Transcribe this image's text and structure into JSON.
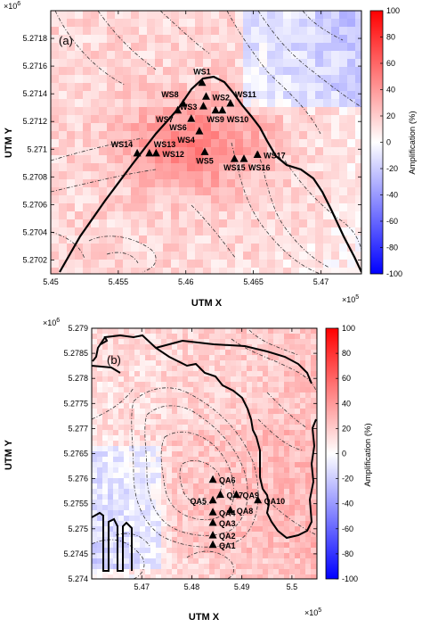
{
  "figure": {
    "panels": [
      {
        "panel_label": "(a)",
        "xlabel": "UTM X",
        "ylabel": "UTM Y",
        "x_exponent": "×10",
        "x_exponent_power": "5",
        "y_exponent": "×10",
        "y_exponent_power": "6",
        "colorbar": {
          "label": "Amplification (%)",
          "ticks": [
            "100",
            "80",
            "60",
            "40",
            "20",
            "0",
            "-20",
            "-40",
            "-60",
            "-80",
            "-100"
          ]
        }
      },
      {
        "panel_label": "(b)",
        "xlabel": "UTM X",
        "ylabel": "UTM Y",
        "x_exponent": "×10",
        "x_exponent_power": "5",
        "y_exponent": "×10",
        "y_exponent_power": "6",
        "colorbar": {
          "label": "Amplification (%)",
          "ticks": [
            "100",
            "80",
            "60",
            "40",
            "20",
            "0",
            "-20",
            "-40",
            "-60",
            "-80",
            "-100"
          ]
        }
      }
    ]
  },
  "colors": {
    "positive": "#ff0000",
    "neutral": "#ffffff",
    "negative": "#0000ff",
    "marker": "#000000"
  },
  "chart_data": [
    {
      "type": "heatmap",
      "title": "",
      "xlabel": "UTM X",
      "ylabel": "UTM Y",
      "xlim": [
        5.45,
        5.473
      ],
      "ylim": [
        5.2701,
        5.272
      ],
      "x_ticks": [
        5.45,
        5.455,
        5.46,
        5.465,
        5.47
      ],
      "x_tick_labels": [
        "5.45",
        "5.455",
        "5.46",
        "5.465",
        "5.47"
      ],
      "y_ticks": [
        5.2702,
        5.2704,
        5.2706,
        5.2708,
        5.271,
        5.2712,
        5.2714,
        5.2716,
        5.2718
      ],
      "y_tick_labels": [
        "5.2702",
        "5.2704",
        "5.2706",
        "5.2708",
        "5.271",
        "5.2712",
        "5.2714",
        "5.2716",
        "5.2718"
      ],
      "color_range": [
        -100,
        100
      ],
      "colorbar_label": "Amplification (%)",
      "stations": [
        {
          "name": "WS1",
          "x": 5.4612,
          "y": 5.27148,
          "label_pos": "above"
        },
        {
          "name": "WS2",
          "x": 5.4615,
          "y": 5.27138,
          "label_pos": "right"
        },
        {
          "name": "WS3",
          "x": 5.4613,
          "y": 5.27131,
          "label_pos": "left"
        },
        {
          "name": "WS4",
          "x": 5.461,
          "y": 5.27113,
          "label_pos": "below-left"
        },
        {
          "name": "WS5",
          "x": 5.4614,
          "y": 5.27098,
          "label_pos": "below"
        },
        {
          "name": "WS6",
          "x": 5.4604,
          "y": 5.27122,
          "label_pos": "below-left"
        },
        {
          "name": "WS7",
          "x": 5.4594,
          "y": 5.27128,
          "label_pos": "below-left"
        },
        {
          "name": "WS8",
          "x": 5.4598,
          "y": 5.27133,
          "label_pos": "above-left"
        },
        {
          "name": "WS9",
          "x": 5.4622,
          "y": 5.27128,
          "label_pos": "below"
        },
        {
          "name": "WS10",
          "x": 5.4627,
          "y": 5.27128,
          "label_pos": "below-right"
        },
        {
          "name": "WS11",
          "x": 5.4633,
          "y": 5.27133,
          "label_pos": "above-right"
        },
        {
          "name": "WS12",
          "x": 5.4578,
          "y": 5.27097,
          "label_pos": "right"
        },
        {
          "name": "WS13",
          "x": 5.4573,
          "y": 5.27097,
          "label_pos": "above-right"
        },
        {
          "name": "WS14",
          "x": 5.4564,
          "y": 5.27097,
          "label_pos": "above-left"
        },
        {
          "name": "WS15",
          "x": 5.4636,
          "y": 5.27093,
          "label_pos": "below"
        },
        {
          "name": "WS16",
          "x": 5.4643,
          "y": 5.27093,
          "label_pos": "below-right"
        },
        {
          "name": "WS17",
          "x": 5.4653,
          "y": 5.27096,
          "label_pos": "right"
        }
      ]
    },
    {
      "type": "heatmap",
      "title": "",
      "xlabel": "UTM X",
      "ylabel": "UTM Y",
      "xlim": [
        5.46,
        5.505
      ],
      "ylim": [
        5.274,
        5.279
      ],
      "x_ticks": [
        5.47,
        5.48,
        5.49,
        5.5
      ],
      "x_tick_labels": [
        "5.47",
        "5.48",
        "5.49",
        "5.5"
      ],
      "y_ticks": [
        5.274,
        5.2745,
        5.275,
        5.2755,
        5.276,
        5.2765,
        5.277,
        5.2775,
        5.278,
        5.2785,
        5.279
      ],
      "y_tick_labels": [
        "5.274",
        "5.2745",
        "5.275",
        "5.2755",
        "5.276",
        "5.2765",
        "5.277",
        "5.2775",
        "5.278",
        "5.2785",
        "5.279"
      ],
      "color_range": [
        -100,
        100
      ],
      "colorbar_label": "Amplification (%)",
      "stations": [
        {
          "name": "QA1",
          "x": 5.4842,
          "y": 5.27468,
          "label_pos": "right"
        },
        {
          "name": "QA2",
          "x": 5.4842,
          "y": 5.27487,
          "label_pos": "right"
        },
        {
          "name": "QA3",
          "x": 5.4842,
          "y": 5.27512,
          "label_pos": "right"
        },
        {
          "name": "QA4",
          "x": 5.4842,
          "y": 5.27533,
          "label_pos": "right"
        },
        {
          "name": "QA5",
          "x": 5.4842,
          "y": 5.27557,
          "label_pos": "left"
        },
        {
          "name": "QA6",
          "x": 5.4842,
          "y": 5.27598,
          "label_pos": "right"
        },
        {
          "name": "QA7",
          "x": 5.4857,
          "y": 5.27568,
          "label_pos": "right"
        },
        {
          "name": "QA8",
          "x": 5.4877,
          "y": 5.27537,
          "label_pos": "right"
        },
        {
          "name": "QA9",
          "x": 5.4889,
          "y": 5.27568,
          "label_pos": "right"
        },
        {
          "name": "QA10",
          "x": 5.4932,
          "y": 5.27557,
          "label_pos": "right"
        }
      ]
    }
  ]
}
